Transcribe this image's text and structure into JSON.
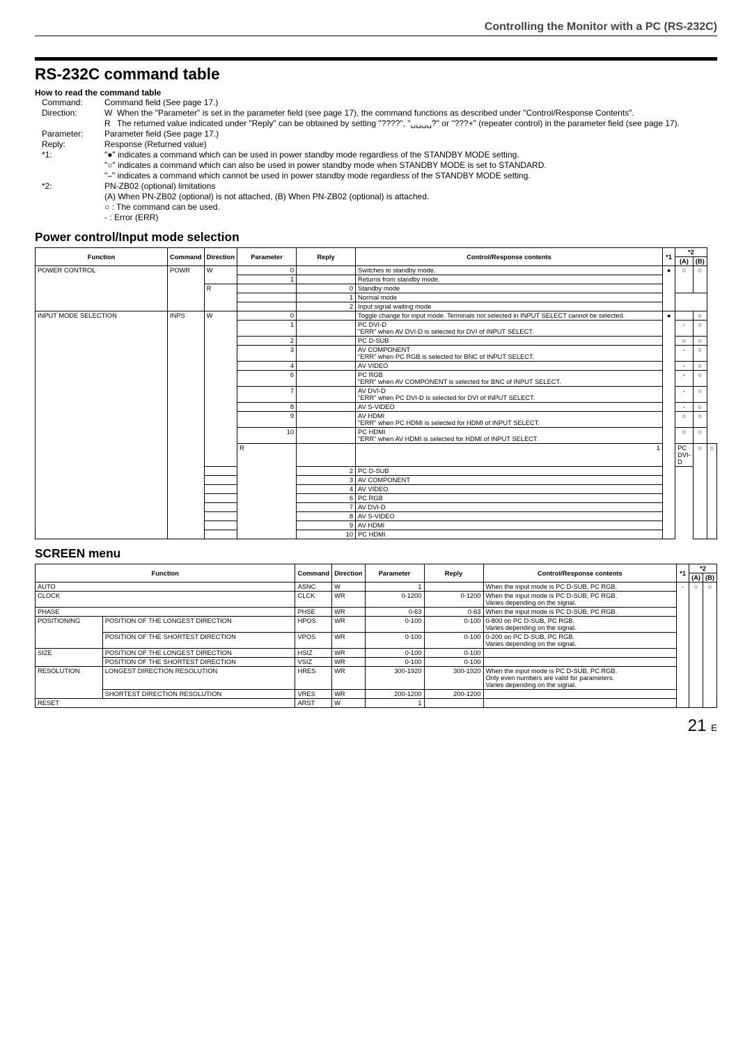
{
  "header": {
    "title": "Controlling the Monitor with a PC (RS-232C)"
  },
  "main_heading": "RS-232C command table",
  "howto_heading": "How to read the command table",
  "defs": [
    {
      "key": "Command:",
      "plain": "Command field (See page 17.)"
    },
    {
      "key": "Direction:",
      "subs": [
        {
          "lbl": "W",
          "txt": "When the \"Parameter\" is set in the parameter field (see page 17), the command functions as described under \"Control/Response Contents\"."
        },
        {
          "lbl": "R",
          "txt": "The returned value indicated under \"Reply\" can be obtained by setting \"????\", \"␣␣␣␣?\" or \"???+\" (repeater control) in the parameter field (see page 17)."
        }
      ]
    },
    {
      "key": "Parameter:",
      "plain": "Parameter field (See page 17.)"
    },
    {
      "key": "Reply:",
      "plain": "Response (Returned value)"
    },
    {
      "key": "*1:",
      "plain": "\"●\" indicates a command which can be used in power standby mode regardless of the STANDBY MODE setting.\n\"○\" indicates a command which can also be used in power standby mode when STANDBY MODE is set to STANDARD.\n\"–\" indicates a command which cannot be used in power standby mode regardless of the STANDBY MODE setting."
    },
    {
      "key": "*2:",
      "plain": "PN-ZB02 (optional) limitations\n(A) When PN-ZB02 (optional) is not attached, (B) When PN-ZB02 (optional) is attached.\n○ : The command can be used.\n-  : Error (ERR)"
    }
  ],
  "t1": {
    "title": "Power control/Input mode selection",
    "head": {
      "fn": "Function",
      "cmd": "Command",
      "dir": "Direction",
      "par": "Parameter",
      "rep": "Reply",
      "crc": "Control/Response contents",
      "s1": "*1",
      "s2": "*2",
      "a": "(A)",
      "b": "(B)"
    },
    "rows": [
      {
        "fn": "POWER CONTROL",
        "fn_rs": 5,
        "cmd": "POWR",
        "cmd_rs": 5,
        "dir": "W",
        "dir_rs": 2,
        "par": "0",
        "crc": "Switches to standby mode.",
        "s1": "●",
        "s1_rs": 5,
        "a": "○",
        "a_rs": 3,
        "b": "○",
        "b_rs": 3
      },
      {
        "par": "1",
        "crc": "Returns from standby mode."
      },
      {
        "dir": "R",
        "dir_rs": 3,
        "rep": "0",
        "crc": "Standby mode"
      },
      {
        "rep": "1",
        "crc": "Normal mode",
        "ab_blank": true,
        "ab_rs": 2
      },
      {
        "rep": "2",
        "crc": "Input signal waiting mode"
      },
      {
        "fn": "INPUT MODE SELECTION",
        "fn_rs": 20,
        "cmd": "INPS",
        "cmd_rs": 20,
        "dir": "W",
        "dir_rs": 11,
        "par": "0",
        "crc": "Toggle change for input mode. Terminals not selected in INPUT SELECT cannot be selected.",
        "s1": "●",
        "s1_rs": 20,
        "a_blank": true,
        "b": "○"
      },
      {
        "par": "1",
        "crc": "PC DVI-D\n\"ERR\" when AV DVI-D is selected for DVI of INPUT SELECT.",
        "a": "-",
        "b": "○"
      },
      {
        "par": "2",
        "crc": "PC D-SUB",
        "a": "○",
        "b": "○"
      },
      {
        "par": "3",
        "crc": "AV COMPONENT\n\"ERR\" when PC RGB is selected for BNC of INPUT SELECT.",
        "a": "-",
        "b": "○"
      },
      {
        "par": "4",
        "crc": "AV VIDEO",
        "a": "-",
        "b": "○"
      },
      {
        "par": "6",
        "crc": "PC RGB\n\"ERR\" when AV COMPONENT is selected for BNC of INPUT SELECT.",
        "a": "-",
        "b": "○"
      },
      {
        "par": "7",
        "crc": "AV DVI-D\n\"ERR\" when PC DVI-D is selected for DVI of INPUT SELECT.",
        "a": "-",
        "b": "○"
      },
      {
        "par": "8",
        "crc": "AV S-VIDEO",
        "a": "-",
        "b": "○"
      },
      {
        "par": "9",
        "crc": "AV HDMI\n\"ERR\" when PC HDMI is selected for HDMI of INPUT SELECT.",
        "a": "○",
        "b": "○"
      },
      {
        "par": "10",
        "crc": "PC HDMI\n\"ERR\" when AV HDMI is selected for HDMI of INPUT SELECT.",
        "a": "○",
        "b": "○"
      },
      {
        "dir": "R",
        "dir_rs": 9,
        "rep": "1",
        "crc": "PC DVI-D",
        "a": "○",
        "a_rs": 9,
        "b": "○",
        "b_rs": 9
      },
      {
        "rep": "2",
        "crc": "PC D-SUB"
      },
      {
        "rep": "3",
        "crc": "AV COMPONENT"
      },
      {
        "rep": "4",
        "crc": "AV VIDEO"
      },
      {
        "rep": "6",
        "crc": "PC RGB"
      },
      {
        "rep": "7",
        "crc": "AV DVI-D"
      },
      {
        "rep": "8",
        "crc": "AV S-VIDEO"
      },
      {
        "rep": "9",
        "crc": "AV HDMI"
      },
      {
        "rep": "10",
        "crc": "PC HDMI"
      }
    ]
  },
  "t2": {
    "title": "SCREEN menu",
    "head": {
      "fn": "Function",
      "cmd": "Command",
      "dir": "Direction",
      "par": "Parameter",
      "rep": "Reply",
      "crc": "Control/Response contents",
      "s1": "*1",
      "s2": "*2",
      "a": "(A)",
      "b": "(B)"
    },
    "rows": [
      {
        "fn1": "AUTO",
        "fn_cs": 2,
        "cmd": "ASNC",
        "dir": "W",
        "par": "1",
        "crc": "When the input mode is PC D-SUB, PC RGB.",
        "s1": "-",
        "s1_rs": 10,
        "a": "○",
        "a_rs": 10,
        "b": "○",
        "b_rs": 10
      },
      {
        "fn1": "CLOCK",
        "fn_cs": 2,
        "cmd": "CLCK",
        "dir": "WR",
        "par": "0-1200",
        "rep": "0-1200",
        "crc": "When the input mode is PC D-SUB, PC RGB.\nVaries depending on the signal."
      },
      {
        "fn1": "PHASE",
        "fn_cs": 2,
        "cmd": "PHSE",
        "dir": "WR",
        "par": "0-63",
        "rep": "0-63",
        "crc": "When the input mode is PC D-SUB, PC RGB."
      },
      {
        "fn1": "POSITIONING",
        "fn1_rs": 2,
        "fn2": "POSITION OF THE LONGEST DIRECTION",
        "cmd": "HPOS",
        "dir": "WR",
        "par": "0-100",
        "rep": "0-100",
        "crc": "0-800 on PC D-SUB, PC RGB.\nVaries depending on the signal."
      },
      {
        "fn2": "POSITION OF THE SHORTEST DIRECTION",
        "cmd": "VPOS",
        "dir": "WR",
        "par": "0-100",
        "rep": "0-100",
        "crc": "0-200 on PC D-SUB, PC RGB.\nVaries depending on the signal."
      },
      {
        "fn1": "SIZE",
        "fn1_rs": 2,
        "fn2": "POSITION OF THE LONGEST DIRECTION",
        "cmd": "HSIZ",
        "dir": "WR",
        "par": "0-100",
        "rep": "0-100",
        "crc": ""
      },
      {
        "fn2": "POSITION OF THE SHORTEST DIRECTION",
        "cmd": "VSIZ",
        "dir": "WR",
        "par": "0-100",
        "rep": "0-100",
        "crc": ""
      },
      {
        "fn1": "RESOLUTION",
        "fn1_rs": 2,
        "fn2": "LONGEST DIRECTION RESOLUTION",
        "cmd": "HRES",
        "dir": "WR",
        "par": "300-1920",
        "rep": "300-1920",
        "crc": "When the input mode is PC D-SUB, PC RGB.\nOnly even numbers are valid for parameters.\nVaries depending on the signal."
      },
      {
        "fn2": "SHORTEST DIRECTION RESOLUTION",
        "cmd": "VRES",
        "dir": "WR",
        "par": "200-1200",
        "rep": "200-1200",
        "crc": ""
      },
      {
        "fn1": "RESET",
        "fn_cs": 2,
        "cmd": "ARST",
        "dir": "W",
        "par": "1",
        "crc": ""
      }
    ]
  },
  "page_num": "21",
  "page_e": "E"
}
